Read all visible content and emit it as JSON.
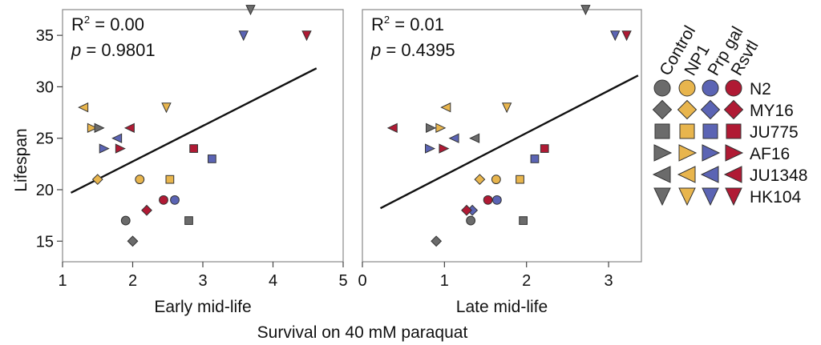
{
  "figure": {
    "shared_xlabel": "Survival on 40 mM paraquat",
    "ylabel": "Lifespan"
  },
  "legend": {
    "treatments": [
      "Control",
      "NP1",
      "Prp gal",
      "Rsvtl"
    ],
    "strains": [
      "N2",
      "MY16",
      "JU775",
      "AF16",
      "JU1348",
      "HK104"
    ]
  },
  "colors": {
    "Control": "#6b6b6b",
    "NP1": "#e8b54d",
    "Prp gal": "#5b64b4",
    "Rsvtl": "#b01a34"
  },
  "markers": {
    "N2": "circle-icon",
    "MY16": "diamond-icon",
    "JU775": "square-icon",
    "AF16": "triangle-right-icon",
    "JU1348": "triangle-left-icon",
    "HK104": "triangle-down-icon"
  },
  "chart_data": [
    {
      "type": "scatter",
      "xlabel": "Early mid-life",
      "ylabel": "Lifespan",
      "xlim": [
        1,
        5
      ],
      "ylim": [
        13,
        37.5
      ],
      "xticks": [
        1,
        2,
        3,
        4,
        5
      ],
      "yticks": [
        15,
        20,
        25,
        30,
        35
      ],
      "stats": {
        "r2_label": "R",
        "r2_sup": "2",
        "r2_value": " = 0.00",
        "p_label": "p",
        "p_value": " = 0.9801"
      },
      "regression": {
        "x": [
          1.12,
          4.62
        ],
        "y": [
          19.7,
          31.8
        ]
      },
      "points": [
        {
          "strain": "N2",
          "treatment": "Control",
          "x": 1.9,
          "y": 17
        },
        {
          "strain": "N2",
          "treatment": "NP1",
          "x": 2.1,
          "y": 21
        },
        {
          "strain": "N2",
          "treatment": "Prp gal",
          "x": 2.6,
          "y": 19
        },
        {
          "strain": "N2",
          "treatment": "Rsvtl",
          "x": 2.44,
          "y": 19
        },
        {
          "strain": "MY16",
          "treatment": "Control",
          "x": 2.0,
          "y": 15
        },
        {
          "strain": "MY16",
          "treatment": "NP1",
          "x": 1.5,
          "y": 21
        },
        {
          "strain": "MY16",
          "treatment": "Rsvtl",
          "x": 2.2,
          "y": 18
        },
        {
          "strain": "JU775",
          "treatment": "Control",
          "x": 2.8,
          "y": 17
        },
        {
          "strain": "JU775",
          "treatment": "NP1",
          "x": 2.53,
          "y": 21
        },
        {
          "strain": "JU775",
          "treatment": "Prp gal",
          "x": 3.13,
          "y": 23
        },
        {
          "strain": "JU775",
          "treatment": "Rsvtl",
          "x": 2.87,
          "y": 24
        },
        {
          "strain": "AF16",
          "treatment": "NP1",
          "x": 1.42,
          "y": 26
        },
        {
          "strain": "AF16",
          "treatment": "Control",
          "x": 1.52,
          "y": 26
        },
        {
          "strain": "AF16",
          "treatment": "Prp gal",
          "x": 1.59,
          "y": 24
        },
        {
          "strain": "AF16",
          "treatment": "Rsvtl",
          "x": 1.82,
          "y": 24
        },
        {
          "strain": "JU1348",
          "treatment": "NP1",
          "x": 1.3,
          "y": 28
        },
        {
          "strain": "JU1348",
          "treatment": "Prp gal",
          "x": 1.78,
          "y": 25
        },
        {
          "strain": "JU1348",
          "treatment": "Rsvtl",
          "x": 1.96,
          "y": 26
        },
        {
          "strain": "HK104",
          "treatment": "NP1",
          "x": 2.48,
          "y": 28
        },
        {
          "strain": "HK104",
          "treatment": "Control",
          "x": 3.68,
          "y": 37.5
        },
        {
          "strain": "HK104",
          "treatment": "Prp gal",
          "x": 3.58,
          "y": 35
        },
        {
          "strain": "HK104",
          "treatment": "Rsvtl",
          "x": 4.48,
          "y": 35
        }
      ]
    },
    {
      "type": "scatter",
      "xlabel": "Late mid-life",
      "ylabel": "Lifespan",
      "xlim": [
        0,
        3.4
      ],
      "ylim": [
        13,
        37.5
      ],
      "xticks": [
        0,
        1,
        2,
        3
      ],
      "yticks": [
        15,
        20,
        25,
        30,
        35
      ],
      "stats": {
        "r2_label": "R",
        "r2_sup": "2",
        "r2_value": " = 0.01",
        "p_label": "p",
        "p_value": " = 0.4395"
      },
      "regression": {
        "x": [
          0.22,
          3.36
        ],
        "y": [
          18.2,
          31.1
        ]
      },
      "points": [
        {
          "strain": "N2",
          "treatment": "Control",
          "x": 1.32,
          "y": 17
        },
        {
          "strain": "N2",
          "treatment": "NP1",
          "x": 1.63,
          "y": 21
        },
        {
          "strain": "N2",
          "treatment": "Prp gal",
          "x": 1.64,
          "y": 19
        },
        {
          "strain": "N2",
          "treatment": "Rsvtl",
          "x": 1.53,
          "y": 19
        },
        {
          "strain": "MY16",
          "treatment": "Control",
          "x": 0.9,
          "y": 15
        },
        {
          "strain": "MY16",
          "treatment": "NP1",
          "x": 1.43,
          "y": 21
        },
        {
          "strain": "MY16",
          "treatment": "Prp gal",
          "x": 1.34,
          "y": 18
        },
        {
          "strain": "MY16",
          "treatment": "Rsvtl",
          "x": 1.27,
          "y": 18
        },
        {
          "strain": "JU775",
          "treatment": "Control",
          "x": 1.96,
          "y": 17
        },
        {
          "strain": "JU775",
          "treatment": "NP1",
          "x": 1.92,
          "y": 21
        },
        {
          "strain": "JU775",
          "treatment": "Prp gal",
          "x": 2.1,
          "y": 23
        },
        {
          "strain": "JU775",
          "treatment": "Rsvtl",
          "x": 2.22,
          "y": 24
        },
        {
          "strain": "AF16",
          "treatment": "Control",
          "x": 0.83,
          "y": 26
        },
        {
          "strain": "AF16",
          "treatment": "NP1",
          "x": 0.95,
          "y": 26
        },
        {
          "strain": "AF16",
          "treatment": "Prp gal",
          "x": 0.82,
          "y": 24
        },
        {
          "strain": "AF16",
          "treatment": "Rsvtl",
          "x": 0.99,
          "y": 24
        },
        {
          "strain": "JU1348",
          "treatment": "NP1",
          "x": 1.02,
          "y": 28
        },
        {
          "strain": "JU1348",
          "treatment": "Rsvtl",
          "x": 0.37,
          "y": 26
        },
        {
          "strain": "JU1348",
          "treatment": "Prp gal",
          "x": 1.12,
          "y": 25
        },
        {
          "strain": "JU1348",
          "treatment": "Control",
          "x": 1.37,
          "y": 25
        },
        {
          "strain": "HK104",
          "treatment": "NP1",
          "x": 1.76,
          "y": 28
        },
        {
          "strain": "HK104",
          "treatment": "Control",
          "x": 2.72,
          "y": 37.5
        },
        {
          "strain": "HK104",
          "treatment": "Prp gal",
          "x": 3.08,
          "y": 35
        },
        {
          "strain": "HK104",
          "treatment": "Rsvtl",
          "x": 3.22,
          "y": 35
        }
      ]
    }
  ]
}
